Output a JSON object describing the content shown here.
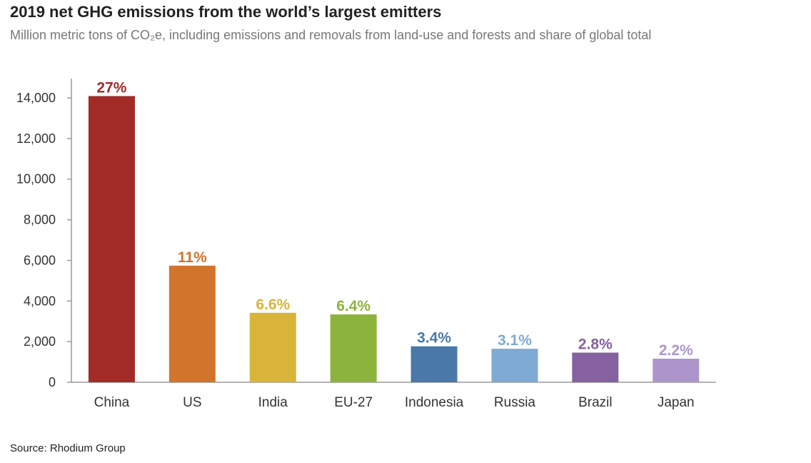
{
  "title": "2019 net GHG emissions from the world’s largest emitters",
  "subtitle": "Million metric tons of CO₂e, including emissions and removals from land-use and forests and share of global total",
  "source": "Source: Rhodium Group",
  "chart_data": {
    "type": "bar",
    "categories": [
      "China",
      "US",
      "India",
      "EU-27",
      "Indonesia",
      "Russia",
      "Brazil",
      "Japan"
    ],
    "values": [
      14090,
      5740,
      3420,
      3340,
      1770,
      1650,
      1460,
      1160
    ],
    "share_labels": [
      "27%",
      "11%",
      "6.6%",
      "6.4%",
      "3.4%",
      "3.1%",
      "2.8%",
      "2.2%"
    ],
    "colors": [
      "#A22B28",
      "#D1742C",
      "#D8B43A",
      "#8CB43C",
      "#4A79A9",
      "#7FAAD3",
      "#8661A0",
      "#AD95CC"
    ],
    "ylim": [
      0,
      15000
    ],
    "yticks": [
      0,
      2000,
      4000,
      6000,
      8000,
      10000,
      12000,
      14000
    ],
    "ytick_labels": [
      "0",
      "2,000",
      "4,000",
      "6,000",
      "8,000",
      "10,000",
      "12,000",
      "14,000"
    ],
    "grid": false,
    "legend": "none",
    "xlabel": "",
    "ylabel": ""
  }
}
